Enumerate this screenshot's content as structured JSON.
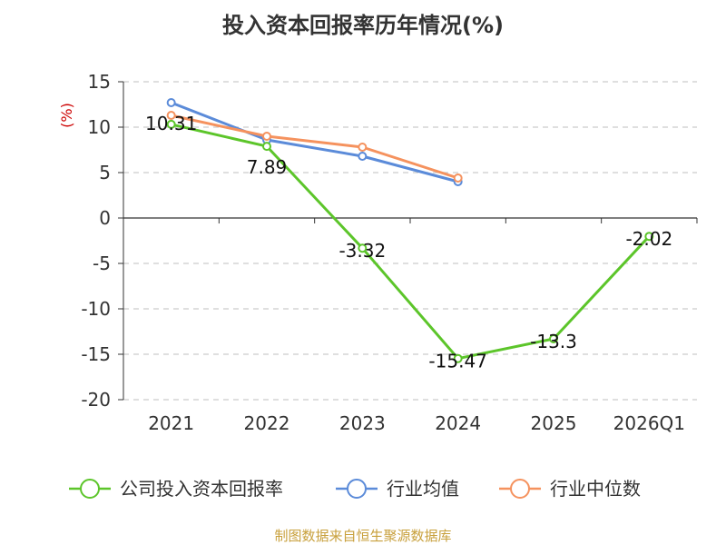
{
  "chart_data": {
    "type": "line",
    "title": "投入资本回报率历年情况(%)",
    "unit_label": "(%)",
    "categories": [
      "2021",
      "2022",
      "2023",
      "2024",
      "2025",
      "2026Q1"
    ],
    "ylim": [
      -20,
      15
    ],
    "yticks": [
      15,
      10,
      5,
      0,
      -5,
      -10,
      -15,
      -20
    ],
    "grid": true,
    "legend_position": "bottom",
    "series": [
      {
        "name": "公司投入资本回报率",
        "color": "#5cc52a",
        "values": [
          10.31,
          7.89,
          -3.32,
          -15.47,
          -13.3,
          -2.02
        ],
        "labels": [
          "10.31",
          "7.89",
          "-3.32",
          "-15.47",
          "-13.3",
          "-2.02"
        ]
      },
      {
        "name": "行业均值",
        "color": "#5b8bd9",
        "values": [
          12.7,
          8.6,
          6.8,
          4.0,
          null,
          null
        ]
      },
      {
        "name": "行业中位数",
        "color": "#f5925e",
        "values": [
          11.3,
          9.0,
          7.8,
          4.4,
          null,
          null
        ]
      }
    ]
  },
  "footer": {
    "source": "制图数据来自恒生聚源数据库"
  }
}
